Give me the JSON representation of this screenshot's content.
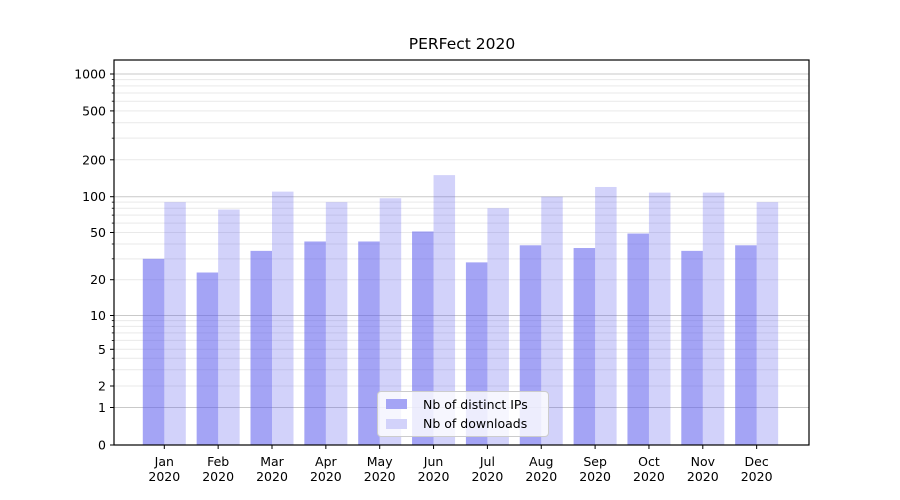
{
  "title": "PERFect 2020",
  "chart_data": {
    "type": "bar",
    "title": "PERFect 2020",
    "categories": [
      {
        "line1": "Jan",
        "line2": "2020"
      },
      {
        "line1": "Feb",
        "line2": "2020"
      },
      {
        "line1": "Mar",
        "line2": "2020"
      },
      {
        "line1": "Apr",
        "line2": "2020"
      },
      {
        "line1": "May",
        "line2": "2020"
      },
      {
        "line1": "Jun",
        "line2": "2020"
      },
      {
        "line1": "Jul",
        "line2": "2020"
      },
      {
        "line1": "Aug",
        "line2": "2020"
      },
      {
        "line1": "Sep",
        "line2": "2020"
      },
      {
        "line1": "Oct",
        "line2": "2020"
      },
      {
        "line1": "Nov",
        "line2": "2020"
      },
      {
        "line1": "Dec",
        "line2": "2020"
      }
    ],
    "series": [
      {
        "name": "Nb of distinct IPs",
        "color": "#a4a4f5",
        "fill": "rgba(90,90,236,0.55)",
        "values": [
          30,
          23,
          35,
          42,
          42,
          51,
          28,
          39,
          37,
          49,
          35,
          39
        ]
      },
      {
        "name": "Nb of downloads",
        "color": "#d2d2fa",
        "fill": "rgba(90,90,236,0.27)",
        "values": [
          90,
          78,
          110,
          90,
          97,
          150,
          80,
          100,
          120,
          108,
          108,
          90
        ]
      }
    ],
    "xlabel": "",
    "ylabel": "",
    "yscale": "symlog",
    "yticks": [
      0,
      1,
      2,
      5,
      10,
      20,
      50,
      100,
      200,
      500,
      1000
    ],
    "ylim": [
      0,
      1300
    ],
    "grid": true,
    "grid_major_color": "#c9c9c9",
    "grid_minor_color": "#e9e9e9",
    "legend_position": "lower center"
  }
}
